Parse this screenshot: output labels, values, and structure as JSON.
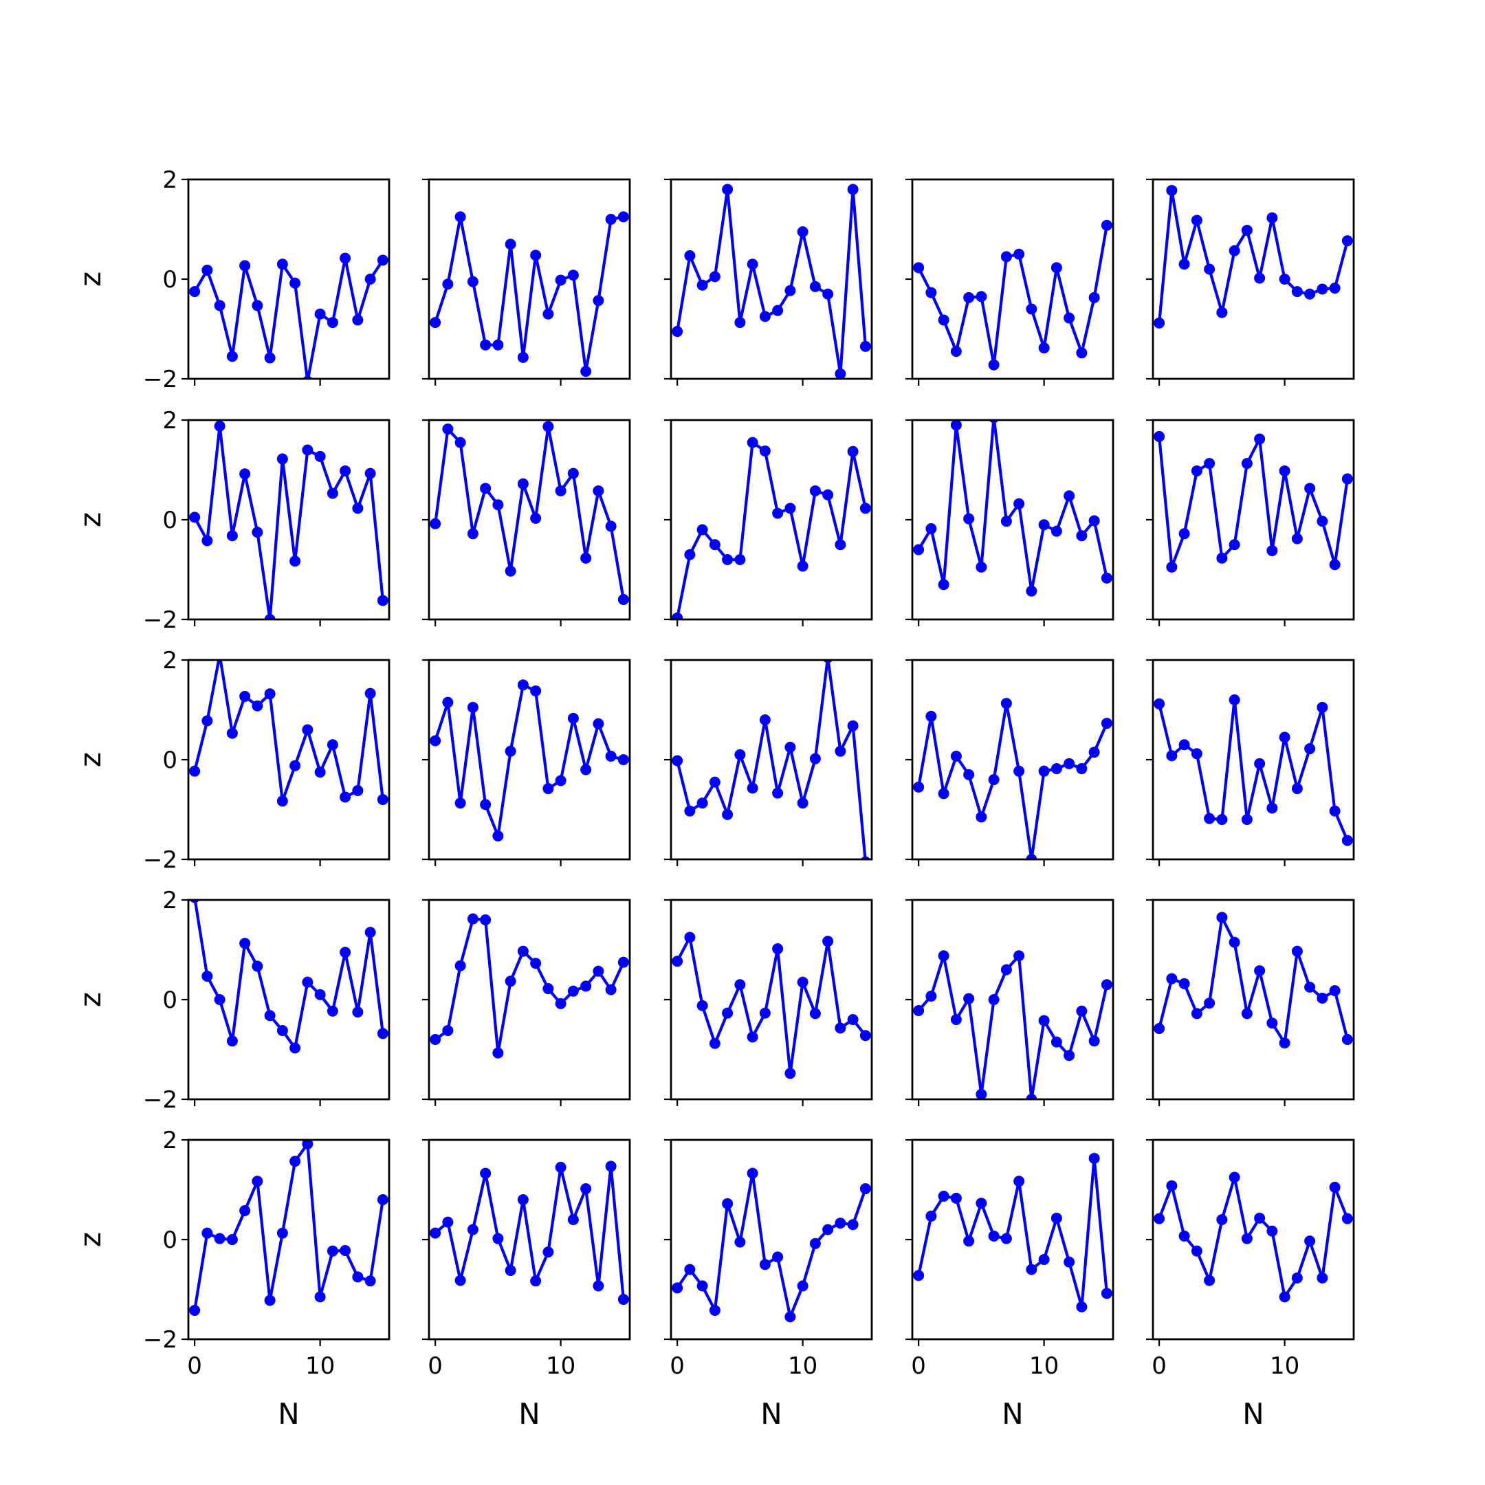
{
  "figure": {
    "line_color": "#0000ff",
    "xlabel": "N",
    "ylabel": "z",
    "xtick_labels": [
      "0",
      "10"
    ],
    "ytick_labels": [
      "2",
      "0",
      "−2"
    ]
  },
  "chart_data": {
    "type": "line",
    "layout": "5x5 grid of small multiples, shared axes",
    "markers": true,
    "xlabel": "N",
    "ylabel": "z",
    "xlim": [
      -0.5,
      15.5
    ],
    "ylim": [
      -2,
      2
    ],
    "x": [
      0,
      1,
      2,
      3,
      4,
      5,
      6,
      7,
      8,
      9,
      10,
      11,
      12,
      13,
      14,
      15
    ],
    "xticks": [
      0,
      10
    ],
    "yticks": [
      2,
      0,
      -2
    ],
    "grid": false,
    "panels": [
      {
        "row": 1,
        "col": 1,
        "values": [
          -0.25,
          0.18,
          -0.53,
          -1.55,
          0.27,
          -0.53,
          -1.58,
          0.3,
          -0.08,
          -2.05,
          -0.7,
          -0.87,
          0.42,
          -0.82,
          0.0,
          0.38
        ]
      },
      {
        "row": 1,
        "col": 2,
        "values": [
          -0.87,
          -0.1,
          1.25,
          -0.05,
          -1.32,
          -1.32,
          0.7,
          -1.57,
          0.48,
          -0.7,
          -0.02,
          0.08,
          -1.85,
          -0.43,
          1.2,
          1.25
        ]
      },
      {
        "row": 1,
        "col": 3,
        "values": [
          -1.05,
          0.47,
          -0.12,
          0.05,
          1.8,
          -0.87,
          0.3,
          -0.75,
          -0.63,
          -0.23,
          0.95,
          -0.15,
          -0.3,
          -1.9,
          1.8,
          -1.35
        ]
      },
      {
        "row": 1,
        "col": 4,
        "values": [
          0.23,
          -0.27,
          -0.82,
          -1.45,
          -0.37,
          -0.35,
          -1.72,
          0.45,
          0.5,
          -0.6,
          -1.38,
          0.23,
          -0.78,
          -1.48,
          -0.37,
          1.08
        ]
      },
      {
        "row": 1,
        "col": 5,
        "values": [
          -0.88,
          1.78,
          0.3,
          1.18,
          0.2,
          -0.67,
          0.57,
          0.98,
          0.02,
          1.23,
          0.0,
          -0.25,
          -0.3,
          -0.2,
          -0.18,
          0.77
        ]
      },
      {
        "row": 2,
        "col": 1,
        "values": [
          0.05,
          -0.42,
          1.88,
          -0.32,
          0.92,
          -0.25,
          -2.0,
          1.22,
          -0.83,
          1.4,
          1.27,
          0.53,
          0.98,
          0.23,
          0.93,
          -1.62
        ]
      },
      {
        "row": 2,
        "col": 2,
        "values": [
          -0.08,
          1.82,
          1.55,
          -0.28,
          0.63,
          0.3,
          -1.03,
          0.72,
          0.03,
          1.87,
          0.58,
          0.93,
          -0.77,
          0.58,
          -0.13,
          -1.6
        ]
      },
      {
        "row": 2,
        "col": 3,
        "values": [
          -1.97,
          -0.7,
          -0.2,
          -0.5,
          -0.8,
          -0.8,
          1.55,
          1.38,
          0.13,
          0.23,
          -0.93,
          0.58,
          0.5,
          -0.5,
          1.37,
          0.23
        ]
      },
      {
        "row": 2,
        "col": 4,
        "values": [
          -0.6,
          -0.18,
          -1.3,
          1.9,
          0.02,
          -0.95,
          2.05,
          -0.03,
          0.32,
          -1.43,
          -0.1,
          -0.23,
          0.48,
          -0.32,
          -0.02,
          -1.17
        ]
      },
      {
        "row": 2,
        "col": 5,
        "values": [
          1.67,
          -0.95,
          -0.28,
          0.98,
          1.13,
          -0.77,
          -0.5,
          1.13,
          1.62,
          -0.62,
          0.98,
          -0.38,
          0.63,
          -0.03,
          -0.9,
          0.82
        ]
      },
      {
        "row": 3,
        "col": 1,
        "values": [
          -0.23,
          0.78,
          2.1,
          0.53,
          1.27,
          1.08,
          1.32,
          -0.83,
          -0.12,
          0.6,
          -0.25,
          0.3,
          -0.75,
          -0.62,
          1.33,
          -0.8
        ]
      },
      {
        "row": 3,
        "col": 2,
        "values": [
          0.38,
          1.15,
          -0.87,
          1.05,
          -0.9,
          -1.53,
          0.17,
          1.5,
          1.38,
          -0.58,
          -0.42,
          0.83,
          -0.2,
          0.72,
          0.07,
          0.0
        ]
      },
      {
        "row": 3,
        "col": 3,
        "values": [
          -0.02,
          -1.03,
          -0.87,
          -0.45,
          -1.1,
          0.1,
          -0.57,
          0.8,
          -0.67,
          0.25,
          -0.87,
          0.02,
          2.05,
          0.17,
          0.68,
          -2.05
        ]
      },
      {
        "row": 3,
        "col": 4,
        "values": [
          -0.55,
          0.87,
          -0.68,
          0.07,
          -0.3,
          -1.15,
          -0.4,
          1.13,
          -0.23,
          -2.0,
          -0.23,
          -0.18,
          -0.08,
          -0.18,
          0.15,
          0.73
        ]
      },
      {
        "row": 3,
        "col": 5,
        "values": [
          1.12,
          0.08,
          0.3,
          0.12,
          -1.18,
          -1.2,
          1.2,
          -1.2,
          -0.08,
          -0.97,
          0.45,
          -0.58,
          0.22,
          1.05,
          -1.03,
          -1.62
        ]
      },
      {
        "row": 4,
        "col": 1,
        "values": [
          2.05,
          0.47,
          0.0,
          -0.83,
          1.13,
          0.67,
          -0.32,
          -0.62,
          -0.97,
          0.35,
          0.1,
          -0.23,
          0.95,
          -0.25,
          1.35,
          -0.68
        ]
      },
      {
        "row": 4,
        "col": 2,
        "values": [
          -0.8,
          -0.62,
          0.68,
          1.62,
          1.6,
          -1.07,
          0.37,
          0.97,
          0.73,
          0.22,
          -0.08,
          0.17,
          0.27,
          0.57,
          0.2,
          0.75
        ]
      },
      {
        "row": 4,
        "col": 3,
        "values": [
          0.77,
          1.25,
          -0.12,
          -0.88,
          -0.27,
          0.3,
          -0.75,
          -0.27,
          1.02,
          -1.48,
          0.35,
          -0.28,
          1.17,
          -0.57,
          -0.4,
          -0.72
        ]
      },
      {
        "row": 4,
        "col": 4,
        "values": [
          -0.22,
          0.07,
          0.88,
          -0.4,
          0.02,
          -1.9,
          0.0,
          0.6,
          0.88,
          -2.0,
          -0.42,
          -0.85,
          -1.12,
          -0.23,
          -0.83,
          0.3
        ]
      },
      {
        "row": 4,
        "col": 5,
        "values": [
          -0.58,
          0.42,
          0.32,
          -0.28,
          -0.07,
          1.65,
          1.15,
          -0.28,
          0.58,
          -0.47,
          -0.87,
          0.97,
          0.25,
          0.03,
          0.18,
          -0.8
        ]
      },
      {
        "row": 5,
        "col": 1,
        "values": [
          -1.42,
          0.13,
          0.02,
          0.0,
          0.58,
          1.17,
          -1.22,
          0.13,
          1.57,
          1.92,
          -1.15,
          -0.23,
          -0.22,
          -0.75,
          -0.83,
          0.8
        ]
      },
      {
        "row": 5,
        "col": 2,
        "values": [
          0.13,
          0.35,
          -0.82,
          0.2,
          1.33,
          0.02,
          -0.62,
          0.8,
          -0.83,
          -0.25,
          1.45,
          0.4,
          1.02,
          -0.93,
          1.47,
          -1.2
        ]
      },
      {
        "row": 5,
        "col": 3,
        "values": [
          -0.97,
          -0.6,
          -0.93,
          -1.42,
          0.72,
          -0.05,
          1.33,
          -0.5,
          -0.35,
          -1.55,
          -0.93,
          -0.08,
          0.2,
          0.33,
          0.3,
          1.02
        ]
      },
      {
        "row": 5,
        "col": 4,
        "values": [
          -0.72,
          0.47,
          0.87,
          0.83,
          -0.03,
          0.73,
          0.07,
          0.02,
          1.17,
          -0.6,
          -0.4,
          0.43,
          -0.45,
          -1.35,
          1.63,
          -1.08
        ]
      },
      {
        "row": 5,
        "col": 5,
        "values": [
          0.42,
          1.08,
          0.07,
          -0.23,
          -0.82,
          0.4,
          1.25,
          0.02,
          0.43,
          0.17,
          -1.15,
          -0.77,
          -0.03,
          -0.77,
          1.05,
          0.42
        ]
      }
    ]
  }
}
